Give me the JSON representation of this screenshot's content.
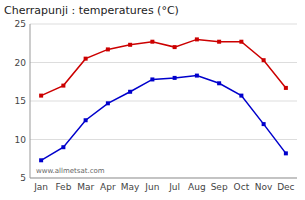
{
  "chart_data": {
    "type": "line",
    "title": "Cherrapunji : temperatures (°C)",
    "categories": [
      "Jan",
      "Feb",
      "Mar",
      "Apr",
      "May",
      "Jun",
      "Jul",
      "Aug",
      "Sep",
      "Oct",
      "Nov",
      "Dec"
    ],
    "series": [
      {
        "color": "#cc0000",
        "marker": "square",
        "values": [
          15.7,
          17.0,
          20.5,
          21.7,
          22.3,
          22.7,
          22.0,
          23.0,
          22.7,
          22.7,
          20.3,
          16.7
        ]
      },
      {
        "color": "#0000cc",
        "marker": "square",
        "values": [
          7.3,
          9.0,
          12.5,
          14.7,
          16.2,
          17.8,
          18.0,
          18.3,
          17.3,
          15.7,
          12.0,
          8.2
        ]
      }
    ],
    "ylim": [
      5,
      25
    ],
    "yticks": [
      5,
      10,
      15,
      20,
      25
    ],
    "grid": true,
    "annotations": [
      "www.allmetsat.com"
    ]
  }
}
